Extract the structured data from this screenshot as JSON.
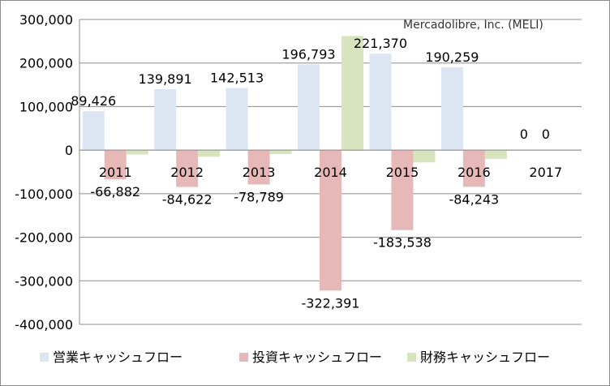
{
  "chart_data": {
    "type": "bar",
    "title": "",
    "subtitle": "Mercadolibre, Inc. (MELI)",
    "xlabel": "",
    "ylabel": "",
    "categories": [
      "2011",
      "2012",
      "2013",
      "2014",
      "2015",
      "2016",
      "2017"
    ],
    "ylim": [
      -400000,
      300000
    ],
    "yticks": [
      300000,
      200000,
      100000,
      0,
      -100000,
      -200000,
      -300000,
      -400000
    ],
    "ytick_labels": [
      "300,000",
      "200,000",
      "100,000",
      "0",
      "-100,000",
      "-200,000",
      "-300,000",
      "-400,000"
    ],
    "grid": true,
    "legend_position": "bottom",
    "series": [
      {
        "name": "営業キャッシュフロー",
        "color": "#dce6f2",
        "values": [
          89426,
          139891,
          142513,
          196793,
          221370,
          190259,
          0
        ],
        "labels": [
          "89,426",
          "139,891",
          "142,513",
          "196,793",
          "221,370",
          "190,259",
          "0"
        ]
      },
      {
        "name": "投資キャッシュフロー",
        "color": "#e6b9b8",
        "values": [
          -66882,
          -84622,
          -78789,
          -322391,
          -183538,
          -84243,
          0
        ],
        "labels": [
          "-66,882",
          "-84,622",
          "-78,789",
          "-322,391",
          "-183,538",
          "-84,243",
          "0"
        ]
      },
      {
        "name": "財務キャッシュフロー",
        "color": "#d7e4bd",
        "values": [
          -10000,
          -15000,
          -9000,
          262000,
          -28000,
          -20000,
          0
        ]
      }
    ]
  }
}
